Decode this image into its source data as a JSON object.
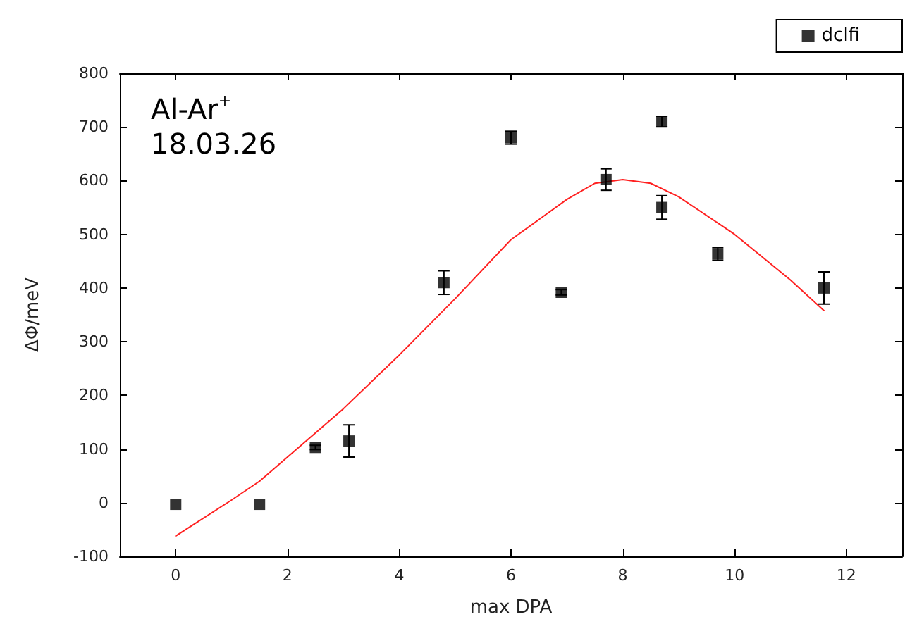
{
  "chart_data": {
    "type": "scatter",
    "xlabel": "max DPA",
    "ylabel": "ΔΦ/meV",
    "annotations": [
      "Al-Ar$^{+}$",
      "18.03.26"
    ],
    "xlim": [
      -1,
      13
    ],
    "xticks": [
      0,
      2,
      4,
      6,
      8,
      10,
      12
    ],
    "ylim": [
      -100,
      800
    ],
    "yticks": [
      -100,
      0,
      100,
      200,
      300,
      400,
      500,
      600,
      700,
      800
    ],
    "grid": false,
    "legend": "top right",
    "marker": "square",
    "series": [
      {
        "name": "dclfi",
        "color": "#000000",
        "x": [
          0,
          1.5,
          2.5,
          3.1,
          4.8,
          6,
          6.9,
          7.7,
          8.7,
          8.7,
          9.7,
          11.6
        ],
        "values": [
          -3,
          -3,
          103,
          115,
          410,
          680,
          392,
          602,
          710,
          550,
          463,
          400
        ],
        "errors": [
          null,
          null,
          4,
          30,
          22,
          12,
          5,
          20,
          10,
          22,
          12,
          30
        ]
      },
      {
        "type": "line",
        "color": "#ff2020",
        "marker": "none",
        "x": [
          0,
          1,
          1.5,
          2,
          3,
          4,
          5,
          6,
          7,
          7.5,
          8,
          8.5,
          9,
          10,
          11,
          11.6
        ],
        "values": [
          -62,
          5,
          40,
          85,
          175,
          275,
          380,
          490,
          565,
          595,
          602,
          595,
          570,
          500,
          415,
          358
        ]
      }
    ]
  }
}
